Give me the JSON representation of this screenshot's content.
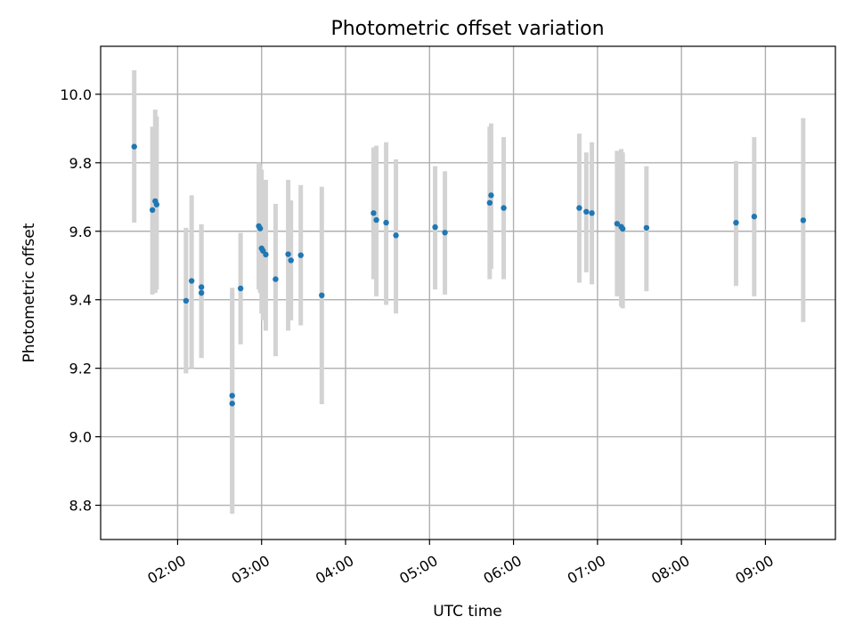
{
  "chart_data": {
    "type": "scatter",
    "title": "Photometric offset variation",
    "xlabel": "UTC time",
    "ylabel": "Photometric offset",
    "xlim": [
      "01:05",
      "09:50"
    ],
    "ylim": [
      8.7,
      10.14
    ],
    "x_ticks": [
      "02:00",
      "03:00",
      "04:00",
      "05:00",
      "06:00",
      "07:00",
      "08:00",
      "09:00"
    ],
    "y_ticks": [
      "8.8",
      "9.0",
      "9.2",
      "9.4",
      "9.6",
      "9.8",
      "10.0"
    ],
    "grid": true,
    "marker_color": "#1f77b4",
    "errorbar_color": "#d3d3d3",
    "series": [
      {
        "points": [
          {
            "t": "01:29",
            "y": 9.847,
            "lo": 9.625,
            "hi": 10.07
          },
          {
            "t": "01:42",
            "y": 9.662,
            "lo": 9.415,
            "hi": 9.905
          },
          {
            "t": "01:44",
            "y": 9.688,
            "lo": 9.42,
            "hi": 9.955
          },
          {
            "t": "01:45",
            "y": 9.678,
            "lo": 9.43,
            "hi": 9.935
          },
          {
            "t": "02:06",
            "y": 9.397,
            "lo": 9.185,
            "hi": 9.61
          },
          {
            "t": "02:10",
            "y": 9.455,
            "lo": 9.2,
            "hi": 9.705
          },
          {
            "t": "02:17",
            "y": 9.437,
            "lo": 9.23,
            "hi": 9.62
          },
          {
            "t": "02:17",
            "y": 9.42,
            "lo": 9.23,
            "hi": 9.62
          },
          {
            "t": "02:39",
            "y": 9.12,
            "lo": 8.79,
            "hi": 9.435
          },
          {
            "t": "02:39",
            "y": 9.097,
            "lo": 8.775,
            "hi": 9.42
          },
          {
            "t": "02:45",
            "y": 9.433,
            "lo": 9.27,
            "hi": 9.595
          },
          {
            "t": "02:58",
            "y": 9.615,
            "lo": 9.43,
            "hi": 9.8
          },
          {
            "t": "02:59",
            "y": 9.608,
            "lo": 9.42,
            "hi": 9.795
          },
          {
            "t": "03:00",
            "y": 9.55,
            "lo": 9.36,
            "hi": 9.78
          },
          {
            "t": "03:01",
            "y": 9.543,
            "lo": 9.34,
            "hi": 9.75
          },
          {
            "t": "03:03",
            "y": 9.532,
            "lo": 9.31,
            "hi": 9.75
          },
          {
            "t": "03:10",
            "y": 9.46,
            "lo": 9.235,
            "hi": 9.68
          },
          {
            "t": "03:19",
            "y": 9.533,
            "lo": 9.31,
            "hi": 9.75
          },
          {
            "t": "03:21",
            "y": 9.515,
            "lo": 9.34,
            "hi": 9.69
          },
          {
            "t": "03:28",
            "y": 9.53,
            "lo": 9.325,
            "hi": 9.735
          },
          {
            "t": "03:43",
            "y": 9.413,
            "lo": 9.095,
            "hi": 9.73
          },
          {
            "t": "04:20",
            "y": 9.653,
            "lo": 9.46,
            "hi": 9.845
          },
          {
            "t": "04:22",
            "y": 9.633,
            "lo": 9.41,
            "hi": 9.85
          },
          {
            "t": "04:29",
            "y": 9.625,
            "lo": 9.385,
            "hi": 9.86
          },
          {
            "t": "04:36",
            "y": 9.588,
            "lo": 9.36,
            "hi": 9.81
          },
          {
            "t": "05:04",
            "y": 9.612,
            "lo": 9.43,
            "hi": 9.79
          },
          {
            "t": "05:11",
            "y": 9.596,
            "lo": 9.415,
            "hi": 9.775
          },
          {
            "t": "05:43",
            "y": 9.683,
            "lo": 9.46,
            "hi": 9.905
          },
          {
            "t": "05:44",
            "y": 9.705,
            "lo": 9.49,
            "hi": 9.915
          },
          {
            "t": "05:53",
            "y": 9.668,
            "lo": 9.46,
            "hi": 9.875
          },
          {
            "t": "06:47",
            "y": 9.668,
            "lo": 9.45,
            "hi": 9.885
          },
          {
            "t": "06:52",
            "y": 9.657,
            "lo": 9.48,
            "hi": 9.83
          },
          {
            "t": "06:56",
            "y": 9.653,
            "lo": 9.445,
            "hi": 9.86
          },
          {
            "t": "07:14",
            "y": 9.622,
            "lo": 9.41,
            "hi": 9.835
          },
          {
            "t": "07:17",
            "y": 9.613,
            "lo": 9.38,
            "hi": 9.84
          },
          {
            "t": "07:18",
            "y": 9.607,
            "lo": 9.375,
            "hi": 9.83
          },
          {
            "t": "07:35",
            "y": 9.61,
            "lo": 9.425,
            "hi": 9.79
          },
          {
            "t": "08:39",
            "y": 9.625,
            "lo": 9.44,
            "hi": 9.805
          },
          {
            "t": "08:52",
            "y": 9.643,
            "lo": 9.41,
            "hi": 9.875
          },
          {
            "t": "09:27",
            "y": 9.632,
            "lo": 9.335,
            "hi": 9.93
          }
        ]
      }
    ]
  }
}
